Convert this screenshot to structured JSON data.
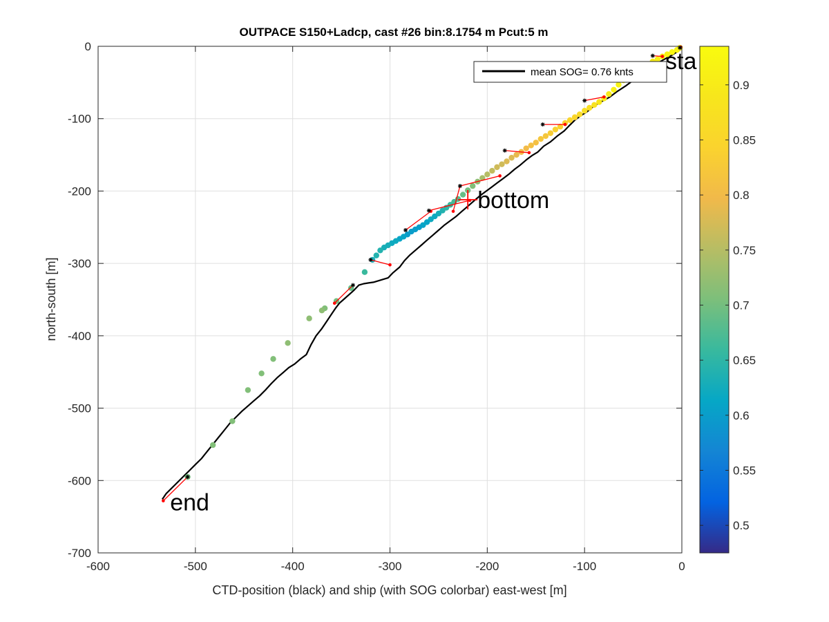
{
  "chart_data": {
    "type": "scatter",
    "title": "OUTPACE S150+Ladcp, cast #26 bin:8.1754 m  Pcut:5 m",
    "xlabel": "CTD-position (black) and ship (with SOG colorbar) east-west [m]",
    "ylabel": "north-south [m]",
    "xlim": [
      -600,
      0
    ],
    "ylim": [
      -700,
      0
    ],
    "xticks": [
      -600,
      -500,
      -400,
      -300,
      -200,
      -100,
      0
    ],
    "yticks": [
      0,
      -100,
      -200,
      -300,
      -400,
      -500,
      -600,
      -700
    ],
    "grid": true,
    "legend": {
      "position": "top-right",
      "label": "mean SOG=  0.76 knts",
      "color": "#000000"
    },
    "colorbar": {
      "range": [
        0.475,
        0.935
      ],
      "ticks": [
        0.5,
        0.55,
        0.6,
        0.65,
        0.7,
        0.75,
        0.8,
        0.85,
        0.9
      ],
      "tick_labels": [
        "0.5",
        "0.55",
        "0.6",
        "0.65",
        "0.7",
        "0.75",
        "0.8",
        "0.85",
        "0.9"
      ],
      "colormap": "parula"
    },
    "annotations": [
      {
        "text": "sta",
        "x": -17,
        "y": -20
      },
      {
        "text": "bottom",
        "x": -210,
        "y": -212
      },
      {
        "text": "end",
        "x": -526,
        "y": -630
      }
    ],
    "bottom_marker": {
      "x": -220,
      "y": -212,
      "color": "#ff0000"
    },
    "ctd_track": {
      "name": "CTD-position",
      "color": "#000000",
      "x": [
        0,
        -3,
        -10,
        -18,
        -26,
        -35,
        -42,
        -50,
        -58,
        -66,
        -74,
        -82,
        -90,
        -97,
        -104,
        -110,
        -116,
        -121,
        -128,
        -135,
        -142,
        -148,
        -154,
        -160,
        -166,
        -172,
        -178,
        -184,
        -190,
        -196,
        -202,
        -208,
        -214,
        -220,
        -226,
        -232,
        -238,
        -244,
        -250,
        -256,
        -262,
        -268,
        -274,
        -280,
        -285,
        -290,
        -297,
        -302,
        -307,
        -312,
        -317,
        -322,
        -327,
        -332,
        -337,
        -342,
        -347,
        -352,
        -356,
        -360,
        -365,
        -370,
        -376,
        -381,
        -386,
        -392,
        -398,
        -404,
        -410,
        -416,
        -422,
        -428,
        -434,
        -440,
        -446,
        -452,
        -458,
        -464,
        -470,
        -476,
        -482,
        -488,
        -494,
        -500,
        -506,
        -512,
        -518,
        -524,
        -530,
        -534
      ],
      "y": [
        -3,
        -6,
        -12,
        -18,
        -24,
        -32,
        -38,
        -47,
        -55,
        -62,
        -70,
        -76,
        -82,
        -90,
        -96,
        -102,
        -110,
        -117,
        -124,
        -132,
        -138,
        -146,
        -151,
        -157,
        -164,
        -170,
        -177,
        -183,
        -189,
        -195,
        -201,
        -207,
        -214,
        -221,
        -228,
        -235,
        -241,
        -247,
        -254,
        -261,
        -268,
        -275,
        -282,
        -289,
        -296,
        -305,
        -313,
        -320,
        -322,
        -324,
        -326,
        -327,
        -328,
        -330,
        -337,
        -343,
        -349,
        -355,
        -362,
        -370,
        -380,
        -390,
        -400,
        -412,
        -426,
        -432,
        -439,
        -444,
        -451,
        -458,
        -466,
        -475,
        -483,
        -490,
        -497,
        -504,
        -512,
        -520,
        -530,
        -540,
        -550,
        -560,
        -570,
        -578,
        -586,
        -594,
        -602,
        -610,
        -618,
        -626
      ]
    },
    "ship_track": {
      "name": "ship SOG",
      "x": [
        -2,
        -5,
        -10,
        -15,
        -20,
        -25,
        -30,
        -35,
        -40,
        -45,
        -50,
        -55,
        -60,
        -65,
        -70,
        -75,
        -80,
        -85,
        -90,
        -95,
        -100,
        -105,
        -110,
        -115,
        -120,
        -125,
        -130,
        -135,
        -140,
        -145,
        -150,
        -155,
        -160,
        -165,
        -170,
        -175,
        -180,
        -185,
        -190,
        -195,
        -200,
        -205,
        -210,
        -215,
        -220,
        -225,
        -230,
        -234,
        -238,
        -242,
        -246,
        -250,
        -254,
        -258,
        -262,
        -266,
        -270,
        -274,
        -278,
        -282,
        -286,
        -290,
        -294,
        -298,
        -302,
        -306,
        -310,
        -314,
        -318,
        -326,
        -340,
        -355,
        -367,
        -370,
        -383,
        -405,
        -420,
        -432,
        -446,
        -462,
        -482,
        -508
      ],
      "y": [
        -2,
        -5,
        -8,
        -11,
        -14,
        -18,
        -21,
        -25,
        -29,
        -33,
        -37,
        -42,
        -47,
        -53,
        -60,
        -66,
        -72,
        -77,
        -81,
        -85,
        -89,
        -94,
        -98,
        -102,
        -106,
        -111,
        -115,
        -120,
        -124,
        -128,
        -133,
        -137,
        -141,
        -146,
        -150,
        -154,
        -159,
        -163,
        -167,
        -172,
        -177,
        -182,
        -187,
        -193,
        -199,
        -205,
        -211,
        -215,
        -219,
        -223,
        -227,
        -231,
        -235,
        -239,
        -243,
        -247,
        -250,
        -253,
        -256,
        -260,
        -263,
        -266,
        -269,
        -272,
        -275,
        -278,
        -282,
        -289,
        -295,
        -312,
        -334,
        -352,
        -362,
        -365,
        -376,
        -410,
        -432,
        -452,
        -475,
        -518,
        -551,
        -595
      ],
      "sog": [
        0.9,
        0.92,
        0.93,
        0.92,
        0.91,
        0.91,
        0.9,
        0.9,
        0.89,
        0.9,
        0.91,
        0.9,
        0.91,
        0.92,
        0.91,
        0.9,
        0.9,
        0.89,
        0.88,
        0.87,
        0.87,
        0.86,
        0.85,
        0.85,
        0.84,
        0.84,
        0.84,
        0.83,
        0.82,
        0.82,
        0.81,
        0.81,
        0.8,
        0.8,
        0.79,
        0.78,
        0.78,
        0.77,
        0.77,
        0.76,
        0.75,
        0.74,
        0.72,
        0.71,
        0.7,
        0.69,
        0.68,
        0.67,
        0.66,
        0.65,
        0.64,
        0.63,
        0.62,
        0.62,
        0.61,
        0.61,
        0.6,
        0.6,
        0.6,
        0.6,
        0.61,
        0.61,
        0.62,
        0.62,
        0.63,
        0.63,
        0.64,
        0.64,
        0.63,
        0.66,
        0.69,
        0.7,
        0.71,
        0.72,
        0.72,
        0.72,
        0.71,
        0.71,
        0.71,
        0.71,
        0.71,
        0.7
      ]
    },
    "ctd_samples": {
      "x": [
        -1,
        -20,
        -80,
        -120,
        -157,
        -187,
        -218,
        -258,
        -235,
        -300,
        -357,
        -533
      ],
      "y": [
        -1,
        -14,
        -70,
        -108,
        -147,
        -179,
        -213,
        -228,
        -228,
        -302,
        -355,
        -628
      ]
    },
    "ship_samples": {
      "x": [
        -2,
        -30,
        -100,
        -143,
        -182,
        -228,
        -260,
        -284,
        -320,
        -338,
        -508
      ],
      "y": [
        -2,
        -13,
        -75,
        -108,
        -144,
        -193,
        -227,
        -254,
        -295,
        -330,
        -595
      ]
    },
    "links": {
      "color": "#ff0000",
      "ctd_index": [
        0,
        1,
        2,
        3,
        4,
        5,
        8,
        6,
        7,
        9,
        10,
        11
      ],
      "ship_index": [
        0,
        1,
        2,
        3,
        4,
        5,
        5,
        6,
        7,
        8,
        9,
        10
      ]
    }
  }
}
